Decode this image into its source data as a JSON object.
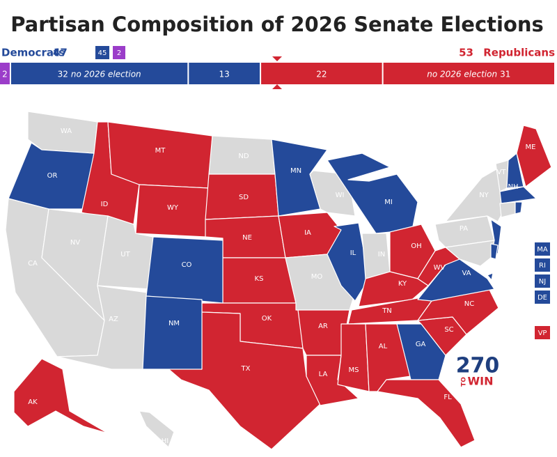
{
  "header": {
    "title": "Partisan Composition of 2026 Senate Elections",
    "dem_label": "Democrats",
    "dem_total": 47,
    "dem_badge": 45,
    "ind_badge": 2,
    "rep_total": 53,
    "rep_label": "Republicans"
  },
  "colors": {
    "D": "#244a9a",
    "R": "#d12531",
    "I": "#9b3dc9",
    "none": "#d9d9d9"
  },
  "bar": {
    "segments": [
      {
        "party": "I",
        "value": 2
      },
      {
        "party": "D",
        "value": 32,
        "label": "no 2026 election",
        "label_side": "after"
      },
      {
        "party": "D",
        "value": 13
      },
      {
        "party": "R",
        "value": 22
      },
      {
        "party": "R",
        "value": 31,
        "label": "no 2026 election",
        "label_side": "before"
      }
    ]
  },
  "states": [
    {
      "label": "WA",
      "party": "none"
    },
    {
      "label": "OR",
      "party": "D"
    },
    {
      "label": "ID",
      "party": "R"
    },
    {
      "label": "MT",
      "party": "R"
    },
    {
      "label": "WY",
      "party": "R"
    },
    {
      "label": "ND",
      "party": "none"
    },
    {
      "label": "SD",
      "party": "R"
    },
    {
      "label": "NE",
      "party": "R"
    },
    {
      "label": "KS",
      "party": "R"
    },
    {
      "label": "OK",
      "party": "R"
    },
    {
      "label": "TX",
      "party": "R"
    },
    {
      "label": "CA",
      "party": "none"
    },
    {
      "label": "NV",
      "party": "none"
    },
    {
      "label": "UT",
      "party": "none"
    },
    {
      "label": "AZ",
      "party": "none"
    },
    {
      "label": "CO",
      "party": "D"
    },
    {
      "label": "NM",
      "party": "D"
    },
    {
      "label": "MN",
      "party": "D"
    },
    {
      "label": "IA",
      "party": "R"
    },
    {
      "label": "MO",
      "party": "none"
    },
    {
      "label": "AR",
      "party": "R"
    },
    {
      "label": "LA",
      "party": "R"
    },
    {
      "label": "WI",
      "party": "none"
    },
    {
      "label": "IL",
      "party": "D"
    },
    {
      "label": "MI",
      "party": "D"
    },
    {
      "label": "IN",
      "party": "none"
    },
    {
      "label": "OH",
      "party": "R"
    },
    {
      "label": "KY",
      "party": "R"
    },
    {
      "label": "TN",
      "party": "R"
    },
    {
      "label": "MS",
      "party": "R"
    },
    {
      "label": "AL",
      "party": "R"
    },
    {
      "label": "GA",
      "party": "D"
    },
    {
      "label": "FL",
      "party": "R"
    },
    {
      "label": "SC",
      "party": "R"
    },
    {
      "label": "NC",
      "party": "R"
    },
    {
      "label": "VA",
      "party": "D"
    },
    {
      "label": "WV",
      "party": "R"
    },
    {
      "label": "PA",
      "party": "none"
    },
    {
      "label": "NY",
      "party": "none"
    },
    {
      "label": null,
      "party": "D"
    },
    {
      "label": "VT",
      "party": "none"
    },
    {
      "label": "NH",
      "party": "D"
    },
    {
      "label": "ME",
      "party": "R"
    },
    {
      "label": null,
      "party": "D"
    },
    {
      "label": null,
      "party": "none"
    },
    {
      "label": null,
      "party": "D"
    },
    {
      "label": null,
      "party": "none"
    },
    {
      "label": null,
      "party": "D"
    },
    {
      "label": "AK",
      "party": "R"
    },
    {
      "label": "HI",
      "party": "none"
    },
    {
      "label": null,
      "party": "D"
    }
  ],
  "small_states": [
    {
      "label": "MA",
      "party": "D"
    },
    {
      "label": "RI",
      "party": "D"
    },
    {
      "label": "NJ",
      "party": "D"
    },
    {
      "label": "DE",
      "party": "D"
    },
    {
      "label": "VP",
      "party": "R"
    }
  ],
  "logo": {
    "number": "270",
    "to": "TO",
    "win": "WIN"
  }
}
